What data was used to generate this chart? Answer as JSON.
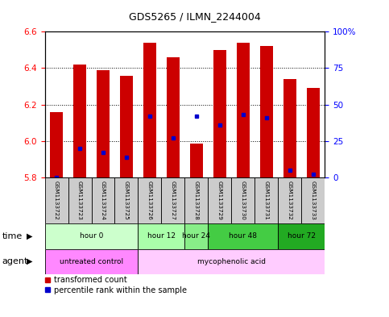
{
  "title": "GDS5265 / ILMN_2244004",
  "samples": [
    "GSM1133722",
    "GSM1133723",
    "GSM1133724",
    "GSM1133725",
    "GSM1133726",
    "GSM1133727",
    "GSM1133728",
    "GSM1133729",
    "GSM1133730",
    "GSM1133731",
    "GSM1133732",
    "GSM1133733"
  ],
  "bar_tops": [
    6.16,
    6.42,
    6.39,
    6.36,
    6.54,
    6.46,
    5.985,
    6.5,
    6.54,
    6.52,
    6.34,
    6.29
  ],
  "bar_base": 5.8,
  "blue_pct": [
    0,
    20,
    17,
    14,
    42,
    27,
    42,
    36,
    43,
    41,
    5,
    2
  ],
  "ylim": [
    5.8,
    6.6
  ],
  "y_ticks": [
    5.8,
    6.0,
    6.2,
    6.4,
    6.6
  ],
  "y2_ticks": [
    0,
    25,
    50,
    75,
    100
  ],
  "bar_color": "#cc0000",
  "blue_color": "#0000cc",
  "time_groups": [
    {
      "label": "hour 0",
      "start": 0,
      "end": 4,
      "color": "#ccffcc"
    },
    {
      "label": "hour 12",
      "start": 4,
      "end": 6,
      "color": "#aaffaa"
    },
    {
      "label": "hour 24",
      "start": 6,
      "end": 7,
      "color": "#88ee88"
    },
    {
      "label": "hour 48",
      "start": 7,
      "end": 10,
      "color": "#44cc44"
    },
    {
      "label": "hour 72",
      "start": 10,
      "end": 12,
      "color": "#22aa22"
    }
  ],
  "agent_groups": [
    {
      "label": "untreated control",
      "start": 0,
      "end": 4,
      "color": "#ff88ff"
    },
    {
      "label": "mycophenolic acid",
      "start": 4,
      "end": 12,
      "color": "#ffccff"
    }
  ],
  "sample_bg_color": "#cccccc",
  "legend_red": "transformed count",
  "legend_blue": "percentile rank within the sample",
  "time_label": "time",
  "agent_label": "agent"
}
